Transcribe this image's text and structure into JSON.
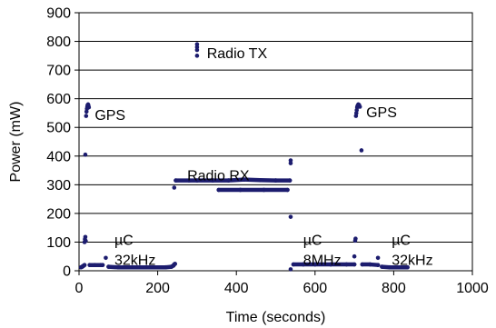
{
  "chart_data": {
    "type": "scatter",
    "title": "",
    "xlabel": "Time (seconds)",
    "ylabel": "Power (mW)",
    "xlim": [
      0,
      1000
    ],
    "ylim": [
      0,
      900
    ],
    "xticks": [
      "0",
      "200",
      "400",
      "600",
      "800",
      "1000"
    ],
    "yticks": [
      "0",
      "100",
      "200",
      "300",
      "400",
      "500",
      "600",
      "700",
      "800",
      "900"
    ],
    "grid": "horizontal",
    "marker_color": "#1c1c6e",
    "series": [
      {
        "points": [
          [
            5,
            12
          ],
          [
            8,
            14
          ],
          [
            10,
            16
          ],
          [
            12,
            18
          ],
          [
            14,
            20
          ],
          [
            14,
            100
          ],
          [
            15,
            110
          ],
          [
            16,
            118
          ],
          [
            17,
            104
          ],
          [
            18,
            540
          ],
          [
            19,
            555
          ],
          [
            20,
            565
          ],
          [
            21,
            572
          ],
          [
            22,
            578
          ],
          [
            23,
            580
          ],
          [
            24,
            575
          ],
          [
            25,
            570
          ],
          [
            16,
            405
          ],
          [
            27,
            20
          ],
          [
            40,
            20
          ],
          [
            55,
            20
          ],
          [
            60,
            20
          ],
          [
            68,
            45
          ],
          [
            75,
            14
          ],
          [
            100,
            12
          ],
          [
            140,
            12
          ],
          [
            180,
            12
          ],
          [
            220,
            12
          ],
          [
            235,
            14
          ],
          [
            240,
            18
          ],
          [
            242,
            22
          ],
          [
            244,
            24
          ],
          [
            242,
            290
          ],
          [
            246,
            315
          ],
          [
            280,
            315
          ],
          [
            300,
            315
          ],
          [
            340,
            315
          ],
          [
            380,
            315
          ],
          [
            420,
            318
          ],
          [
            460,
            316
          ],
          [
            500,
            315
          ],
          [
            536,
            315
          ],
          [
            300,
            750
          ],
          [
            300,
            770
          ],
          [
            300,
            780
          ],
          [
            300,
            790
          ],
          [
            355,
            282
          ],
          [
            410,
            282
          ],
          [
            470,
            282
          ],
          [
            530,
            282
          ],
          [
            538,
            375
          ],
          [
            538,
            385
          ],
          [
            538,
            188
          ],
          [
            538,
            5
          ],
          [
            545,
            22
          ],
          [
            570,
            22
          ],
          [
            600,
            22
          ],
          [
            640,
            22
          ],
          [
            680,
            22
          ],
          [
            700,
            22
          ],
          [
            700,
            50
          ],
          [
            702,
            105
          ],
          [
            703,
            112
          ],
          [
            704,
            540
          ],
          [
            705,
            550
          ],
          [
            706,
            560
          ],
          [
            707,
            570
          ],
          [
            708,
            575
          ],
          [
            710,
            580
          ],
          [
            712,
            578
          ],
          [
            714,
            572
          ],
          [
            718,
            420
          ],
          [
            720,
            22
          ],
          [
            740,
            22
          ],
          [
            760,
            20
          ],
          [
            760,
            45
          ],
          [
            770,
            14
          ],
          [
            790,
            12
          ],
          [
            810,
            12
          ],
          [
            835,
            12
          ]
        ]
      }
    ],
    "annotations": [
      {
        "label": "Radio TX",
        "x": 325,
        "y": 760
      },
      {
        "label": "GPS",
        "x": 40,
        "y": 545
      },
      {
        "label": "GPS",
        "x": 730,
        "y": 555
      },
      {
        "label": "Radio RX",
        "x": 275,
        "y": 335
      },
      {
        "label": "µC",
        "x": 90,
        "y": 110
      },
      {
        "label": "32kHz",
        "x": 90,
        "y": 40
      },
      {
        "label": "µC",
        "x": 570,
        "y": 110
      },
      {
        "label": "8MHz",
        "x": 570,
        "y": 40
      },
      {
        "label": "µC",
        "x": 795,
        "y": 110
      },
      {
        "label": "32kHz",
        "x": 795,
        "y": 40
      }
    ]
  }
}
